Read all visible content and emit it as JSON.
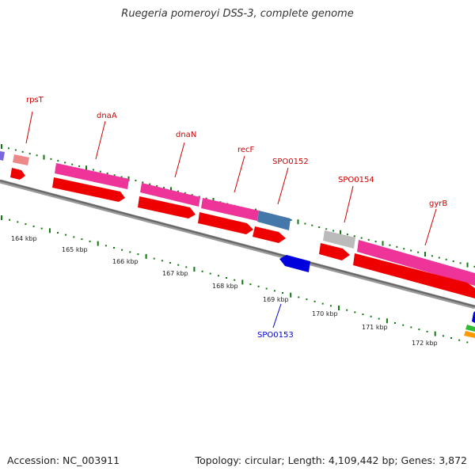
{
  "title": "Ruegeria pomeroyi DSS-3, complete genome",
  "footer": {
    "accession": "Accession: NC_003911",
    "topology": "Topology: circular; Length: 4,109,442 bp; Genes: 3,872"
  },
  "colors": {
    "backbone": "#777777",
    "red_gene": "#ee0000",
    "pink_gene": "#ee3399",
    "blue_gene": "#0000dd",
    "steel_gene": "#4477aa",
    "grey_gene": "#bbbbbb",
    "salmon_gene": "#ee8888",
    "label_red": "#cc0000",
    "label_blue": "#0000cc",
    "tick_green": "#117711"
  },
  "gene_labels": [
    {
      "id": "rpsT",
      "text": "rpsT"
    },
    {
      "id": "dnaA",
      "text": "dnaA"
    },
    {
      "id": "dnaN",
      "text": "dnaN"
    },
    {
      "id": "recF",
      "text": "recF"
    },
    {
      "id": "spo0152",
      "text": "SPO0152"
    },
    {
      "id": "spo0154",
      "text": "SPO0154"
    },
    {
      "id": "gyrB",
      "text": "gyrB"
    },
    {
      "id": "spo0153",
      "text": "SPO0153"
    }
  ],
  "scale_labels": [
    "164 kbp",
    "165 kbp",
    "166 kbp",
    "167 kbp",
    "168 kbp",
    "169 kbp",
    "170 kbp",
    "171 kbp",
    "172 kbp"
  ]
}
